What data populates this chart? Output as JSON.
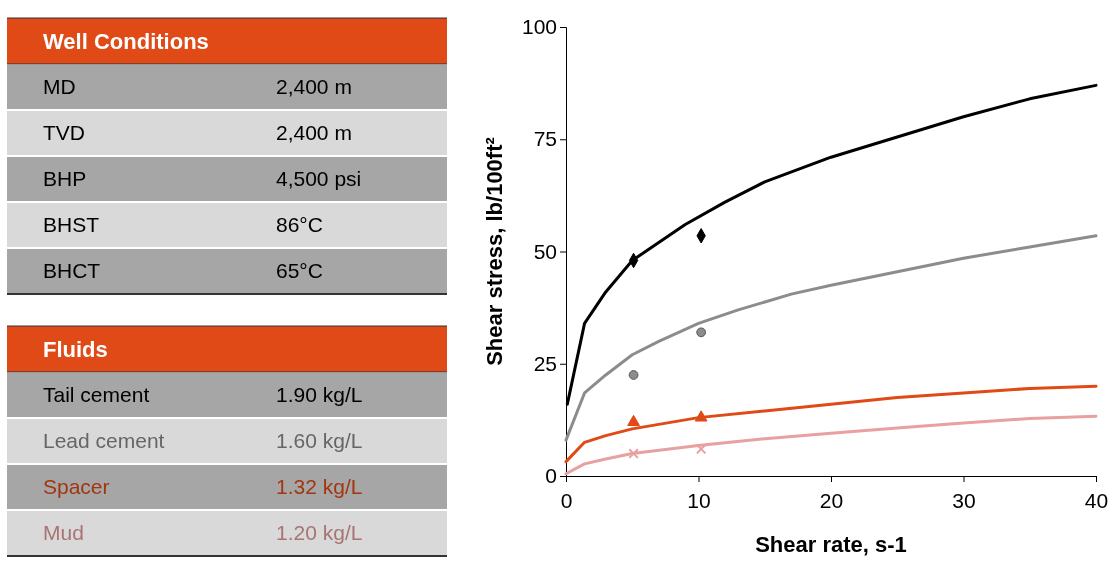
{
  "chart_data": [
    {
      "type": "other",
      "title": "Well Conditions",
      "annotations": [
        "MD",
        "2,400 m",
        "TVD",
        "2,400 m",
        "BHP",
        "4,500 psi",
        "BHST",
        "86°C",
        "BHCT",
        "65°C"
      ]
    },
    {
      "type": "other",
      "title": "Fluids",
      "annotations": [
        "Tail cement",
        "1.90 kg/L",
        "Lead cement",
        "1.60 kg/L",
        "Spacer",
        "1.32 kg/L",
        "Mud",
        "1.20 kg/L"
      ]
    },
    {
      "type": "line",
      "xlabel": "Shear rate, s-1",
      "ylabel": "Shear stress, lb/100ft²",
      "xlim": [
        0,
        40
      ],
      "ylim": [
        0,
        100
      ],
      "xticks": [
        0,
        10,
        20,
        30,
        40
      ],
      "yticks": [
        0,
        25,
        50,
        75,
        100
      ],
      "grid": false,
      "series": [
        {
          "type": "line",
          "color": "#000000",
          "x": [
            0.1,
            1.4,
            3,
            5,
            6,
            9,
            12,
            15,
            20,
            25,
            30,
            35,
            40
          ],
          "values": [
            16,
            34,
            41,
            48,
            50,
            56,
            61,
            65.5,
            71,
            75.5,
            80,
            84,
            87
          ]
        },
        {
          "type": "line",
          "color": "#8c8c8c",
          "x": [
            0,
            1.4,
            3,
            5,
            7,
            10,
            13,
            17,
            20,
            25,
            30,
            35,
            40
          ],
          "values": [
            8,
            18.5,
            22.5,
            27,
            30,
            34,
            37,
            40.5,
            42.5,
            45.5,
            48.5,
            51,
            53.5
          ]
        },
        {
          "type": "line",
          "color": "#e04a17",
          "x": [
            0,
            1.4,
            3,
            5,
            8,
            10,
            15,
            20,
            25,
            30,
            35,
            40
          ],
          "values": [
            3.2,
            7.5,
            9,
            10.5,
            12,
            13,
            14.5,
            16,
            17.5,
            18.5,
            19.5,
            20
          ]
        },
        {
          "type": "line",
          "color": "#e8a0a0",
          "x": [
            0,
            1.4,
            3,
            5,
            10,
            15,
            20,
            25,
            30,
            35,
            40
          ],
          "values": [
            0.5,
            2.7,
            3.8,
            5,
            6.8,
            8.3,
            9.5,
            10.7,
            11.8,
            12.8,
            13.3
          ]
        },
        {
          "type": "scatter",
          "color": "#000000",
          "marker": "diamond",
          "x": [
            5.1,
            10.2
          ],
          "values": [
            48,
            53.5
          ]
        },
        {
          "type": "scatter",
          "color": "#8c8c8c",
          "marker": "circle",
          "x": [
            5.1,
            10.2
          ],
          "values": [
            22.5,
            32
          ]
        },
        {
          "type": "scatter",
          "color": "#e04a17",
          "marker": "triangle",
          "x": [
            5.1,
            10.2
          ],
          "values": [
            12,
            13
          ]
        },
        {
          "type": "scatter",
          "color": "#e8a0a0",
          "marker": "cross",
          "x": [
            5.1,
            10.2
          ],
          "values": [
            5,
            6
          ]
        }
      ]
    }
  ]
}
